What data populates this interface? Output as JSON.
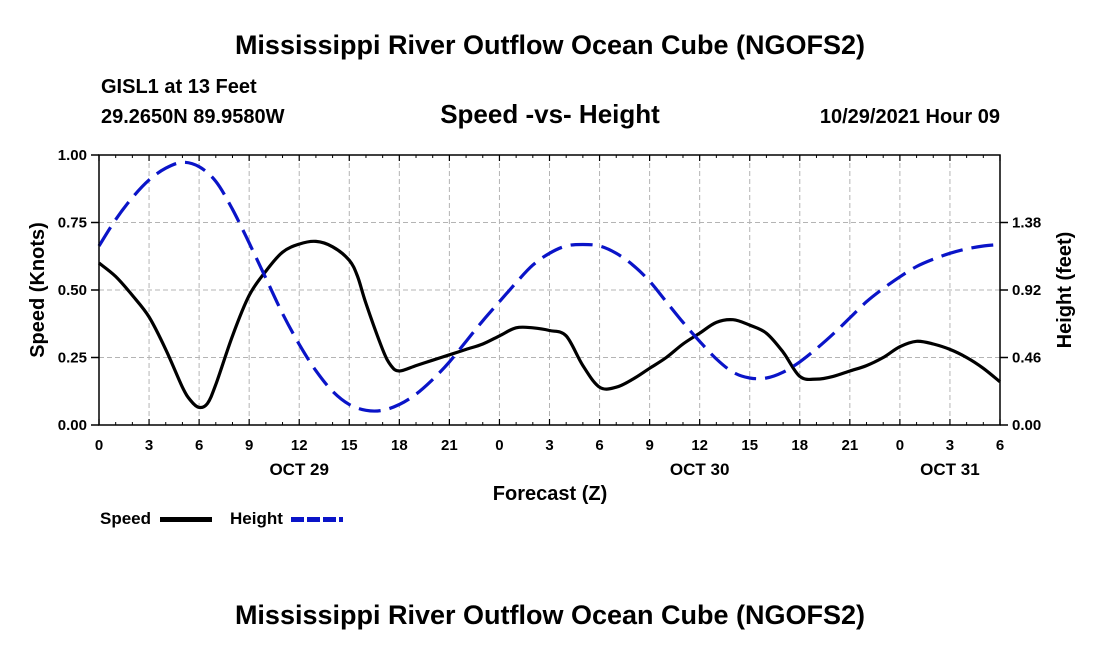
{
  "titles": {
    "top": "Mississippi River Outflow Ocean Cube (NGOFS2)",
    "bottom": "Mississippi River Outflow Ocean Cube (NGOFS2)"
  },
  "station": {
    "name": "GISL1 at 13 Feet",
    "coords": "29.2650N  89.9580W",
    "datetime": "10/29/2021 Hour 09"
  },
  "legend": {
    "speed_label": "Speed",
    "height_label": "Height"
  },
  "colors": {
    "speed": "#000000",
    "height": "#0a14c8",
    "grid": "#b4b4b4"
  },
  "chart_data": {
    "type": "line",
    "title": "Speed -vs- Height",
    "xlabel": "Forecast (Z)",
    "ylabel": "Speed (Knots)",
    "y2label": "Height (feet)",
    "xlim": [
      0,
      54
    ],
    "ylim": [
      0,
      1
    ],
    "y2lim": [
      0,
      1.84
    ],
    "x_ticks": [
      0,
      3,
      6,
      9,
      12,
      15,
      18,
      21,
      24,
      27,
      30,
      33,
      36,
      39,
      42,
      45,
      48,
      51,
      54
    ],
    "x_tick_labels": [
      "0",
      "3",
      "6",
      "9",
      "12",
      "15",
      "18",
      "21",
      "0",
      "3",
      "6",
      "9",
      "12",
      "15",
      "18",
      "21",
      "0",
      "3",
      "6"
    ],
    "date_labels": [
      {
        "x": 12,
        "label": "OCT 29"
      },
      {
        "x": 36,
        "label": "OCT 30"
      },
      {
        "x": 51,
        "label": "OCT 31"
      }
    ],
    "y_ticks": [
      0.0,
      0.25,
      0.5,
      0.75,
      1.0
    ],
    "y_tick_labels": [
      "0.00",
      "0.25",
      "0.50",
      "0.75",
      "1.00"
    ],
    "y2_ticks": [
      0.0,
      0.46,
      0.92,
      1.38
    ],
    "y2_tick_labels": [
      "0.00",
      "0.46",
      "0.92",
      "1.38"
    ],
    "series": [
      {
        "name": "Speed",
        "axis": "left",
        "style": "solid",
        "x": [
          0,
          1,
          2,
          3,
          4,
          5,
          5.5,
          6,
          6.5,
          7,
          8,
          9,
          10,
          11,
          12,
          13,
          14,
          15,
          15.5,
          16,
          17,
          17.5,
          18,
          19,
          20,
          21,
          22,
          23,
          24,
          25,
          26,
          27,
          28,
          29,
          30,
          31,
          32,
          33,
          34,
          35,
          36,
          37,
          38,
          39,
          40,
          41,
          42,
          43,
          44,
          45,
          46,
          47,
          48,
          49,
          50,
          51,
          52,
          53,
          54
        ],
        "values": [
          0.6,
          0.55,
          0.48,
          0.4,
          0.28,
          0.14,
          0.09,
          0.065,
          0.08,
          0.15,
          0.33,
          0.48,
          0.57,
          0.64,
          0.67,
          0.68,
          0.66,
          0.61,
          0.55,
          0.45,
          0.28,
          0.22,
          0.2,
          0.22,
          0.24,
          0.26,
          0.28,
          0.3,
          0.33,
          0.36,
          0.36,
          0.35,
          0.33,
          0.22,
          0.14,
          0.14,
          0.17,
          0.21,
          0.25,
          0.3,
          0.34,
          0.38,
          0.39,
          0.37,
          0.34,
          0.27,
          0.18,
          0.17,
          0.18,
          0.2,
          0.22,
          0.25,
          0.29,
          0.31,
          0.3,
          0.28,
          0.25,
          0.21,
          0.16
        ]
      },
      {
        "name": "Height",
        "axis": "right",
        "style": "dashed",
        "x": [
          0,
          1,
          2,
          3,
          4,
          5,
          6,
          7,
          8,
          9,
          10,
          11,
          12,
          13,
          14,
          15,
          16,
          17,
          18,
          19,
          20,
          21,
          22,
          23,
          24,
          25,
          26,
          27,
          28,
          29,
          30,
          31,
          32,
          33,
          34,
          35,
          36,
          37,
          38,
          39,
          40,
          41,
          42,
          43,
          44,
          45,
          46,
          47,
          48,
          49,
          50,
          51,
          52,
          53,
          54
        ],
        "values": [
          1.22,
          1.4,
          1.55,
          1.67,
          1.75,
          1.79,
          1.76,
          1.66,
          1.47,
          1.24,
          1.0,
          0.76,
          0.55,
          0.37,
          0.23,
          0.14,
          0.1,
          0.1,
          0.14,
          0.21,
          0.31,
          0.43,
          0.57,
          0.71,
          0.84,
          0.97,
          1.09,
          1.17,
          1.22,
          1.23,
          1.22,
          1.17,
          1.09,
          0.98,
          0.84,
          0.7,
          0.57,
          0.45,
          0.36,
          0.32,
          0.32,
          0.36,
          0.43,
          0.52,
          0.62,
          0.73,
          0.84,
          0.93,
          1.01,
          1.08,
          1.13,
          1.17,
          1.2,
          1.22,
          1.23
        ]
      }
    ]
  }
}
